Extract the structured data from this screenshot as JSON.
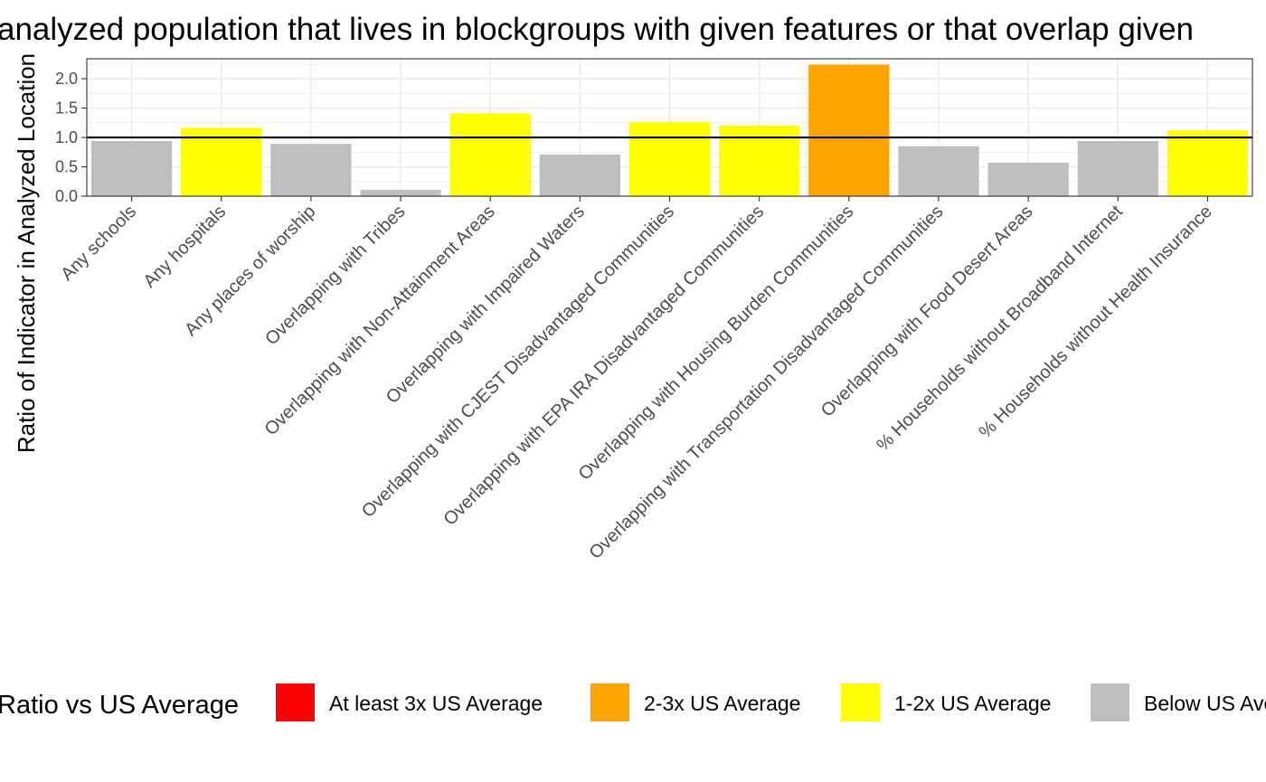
{
  "chart_data": {
    "type": "bar",
    "title": "analyzed population that lives in blockgroups with given features or that overlap given",
    "xlabel": "",
    "ylabel": "Ratio of Indicator in Analyzed Location",
    "ylim": [
      0,
      2.34
    ],
    "yticks": [
      0.0,
      0.5,
      1.0,
      1.5,
      2.0
    ],
    "ytick_labels": [
      "0.0",
      "0.5",
      "1.0",
      "1.5",
      "2.0"
    ],
    "reference_line": 1.0,
    "grid": true,
    "categories": [
      "Any schools",
      "Any hospitals",
      "Any places of worship",
      "Overlapping with Tribes",
      "Overlapping with Non-Attainment Areas",
      "Overlapping with Impaired Waters",
      "Overlapping with CJEST Disadvantaged Communities",
      "Overlapping with EPA IRA Disadvantaged Communities",
      "Overlapping with Housing Burden Communities",
      "Overlapping with Transportation Disadvantaged Communities",
      "Overlapping with Food Desert Areas",
      "% Households without Broadband Internet",
      "% Households without Health Insurance"
    ],
    "values": [
      0.94,
      1.16,
      0.89,
      0.11,
      1.41,
      0.71,
      1.26,
      1.2,
      2.24,
      0.85,
      0.57,
      0.94,
      1.12
    ],
    "bar_colors": [
      "#bebebe",
      "#ffff00",
      "#bebebe",
      "#bebebe",
      "#ffff00",
      "#bebebe",
      "#ffff00",
      "#ffff00",
      "#ffa500",
      "#bebebe",
      "#bebebe",
      "#bebebe",
      "#ffff00"
    ],
    "legend": {
      "title": "Ratio vs US Average",
      "position": "bottom",
      "entries": [
        {
          "label": "At least 3x US Average",
          "color": "#ff0000"
        },
        {
          "label": "2-3x US Average",
          "color": "#ffa500"
        },
        {
          "label": "1-2x US Average",
          "color": "#ffff00"
        },
        {
          "label": "Below US Average",
          "color": "#bebebe"
        }
      ]
    }
  }
}
